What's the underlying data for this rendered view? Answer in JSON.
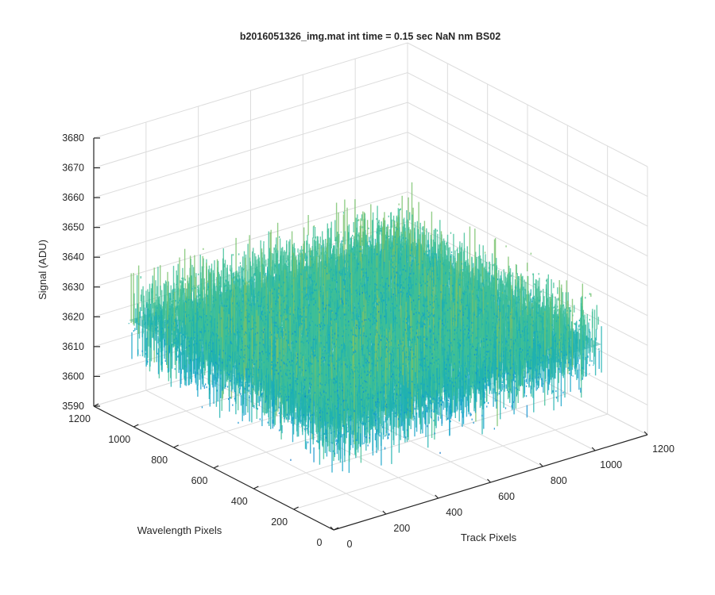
{
  "chart_data": {
    "type": "surface",
    "title": "b2016051326_img.mat int time = 0.15 sec  NaN nm BS02",
    "xlabel": "Track Pixels",
    "ylabel": "Wavelength Pixels",
    "zlabel": "Signal (ADU)",
    "xlim": [
      0,
      1200
    ],
    "ylim": [
      0,
      1200
    ],
    "zlim": [
      3590,
      3680
    ],
    "xticks": [
      "0",
      "200",
      "400",
      "600",
      "800",
      "1000",
      "1200"
    ],
    "yticks": [
      "0",
      "200",
      "400",
      "600",
      "800",
      "1000",
      "1200"
    ],
    "zticks": [
      "3590",
      "3600",
      "3610",
      "3620",
      "3630",
      "3640",
      "3650",
      "3660",
      "3670",
      "3680"
    ],
    "grid": true,
    "view": "3d",
    "colormap": "parula",
    "surface": {
      "x_range": [
        0,
        1024
      ],
      "y_range": [
        0,
        1024
      ],
      "mean_signal": 3625,
      "signal_range": [
        3597,
        3667
      ]
    }
  }
}
